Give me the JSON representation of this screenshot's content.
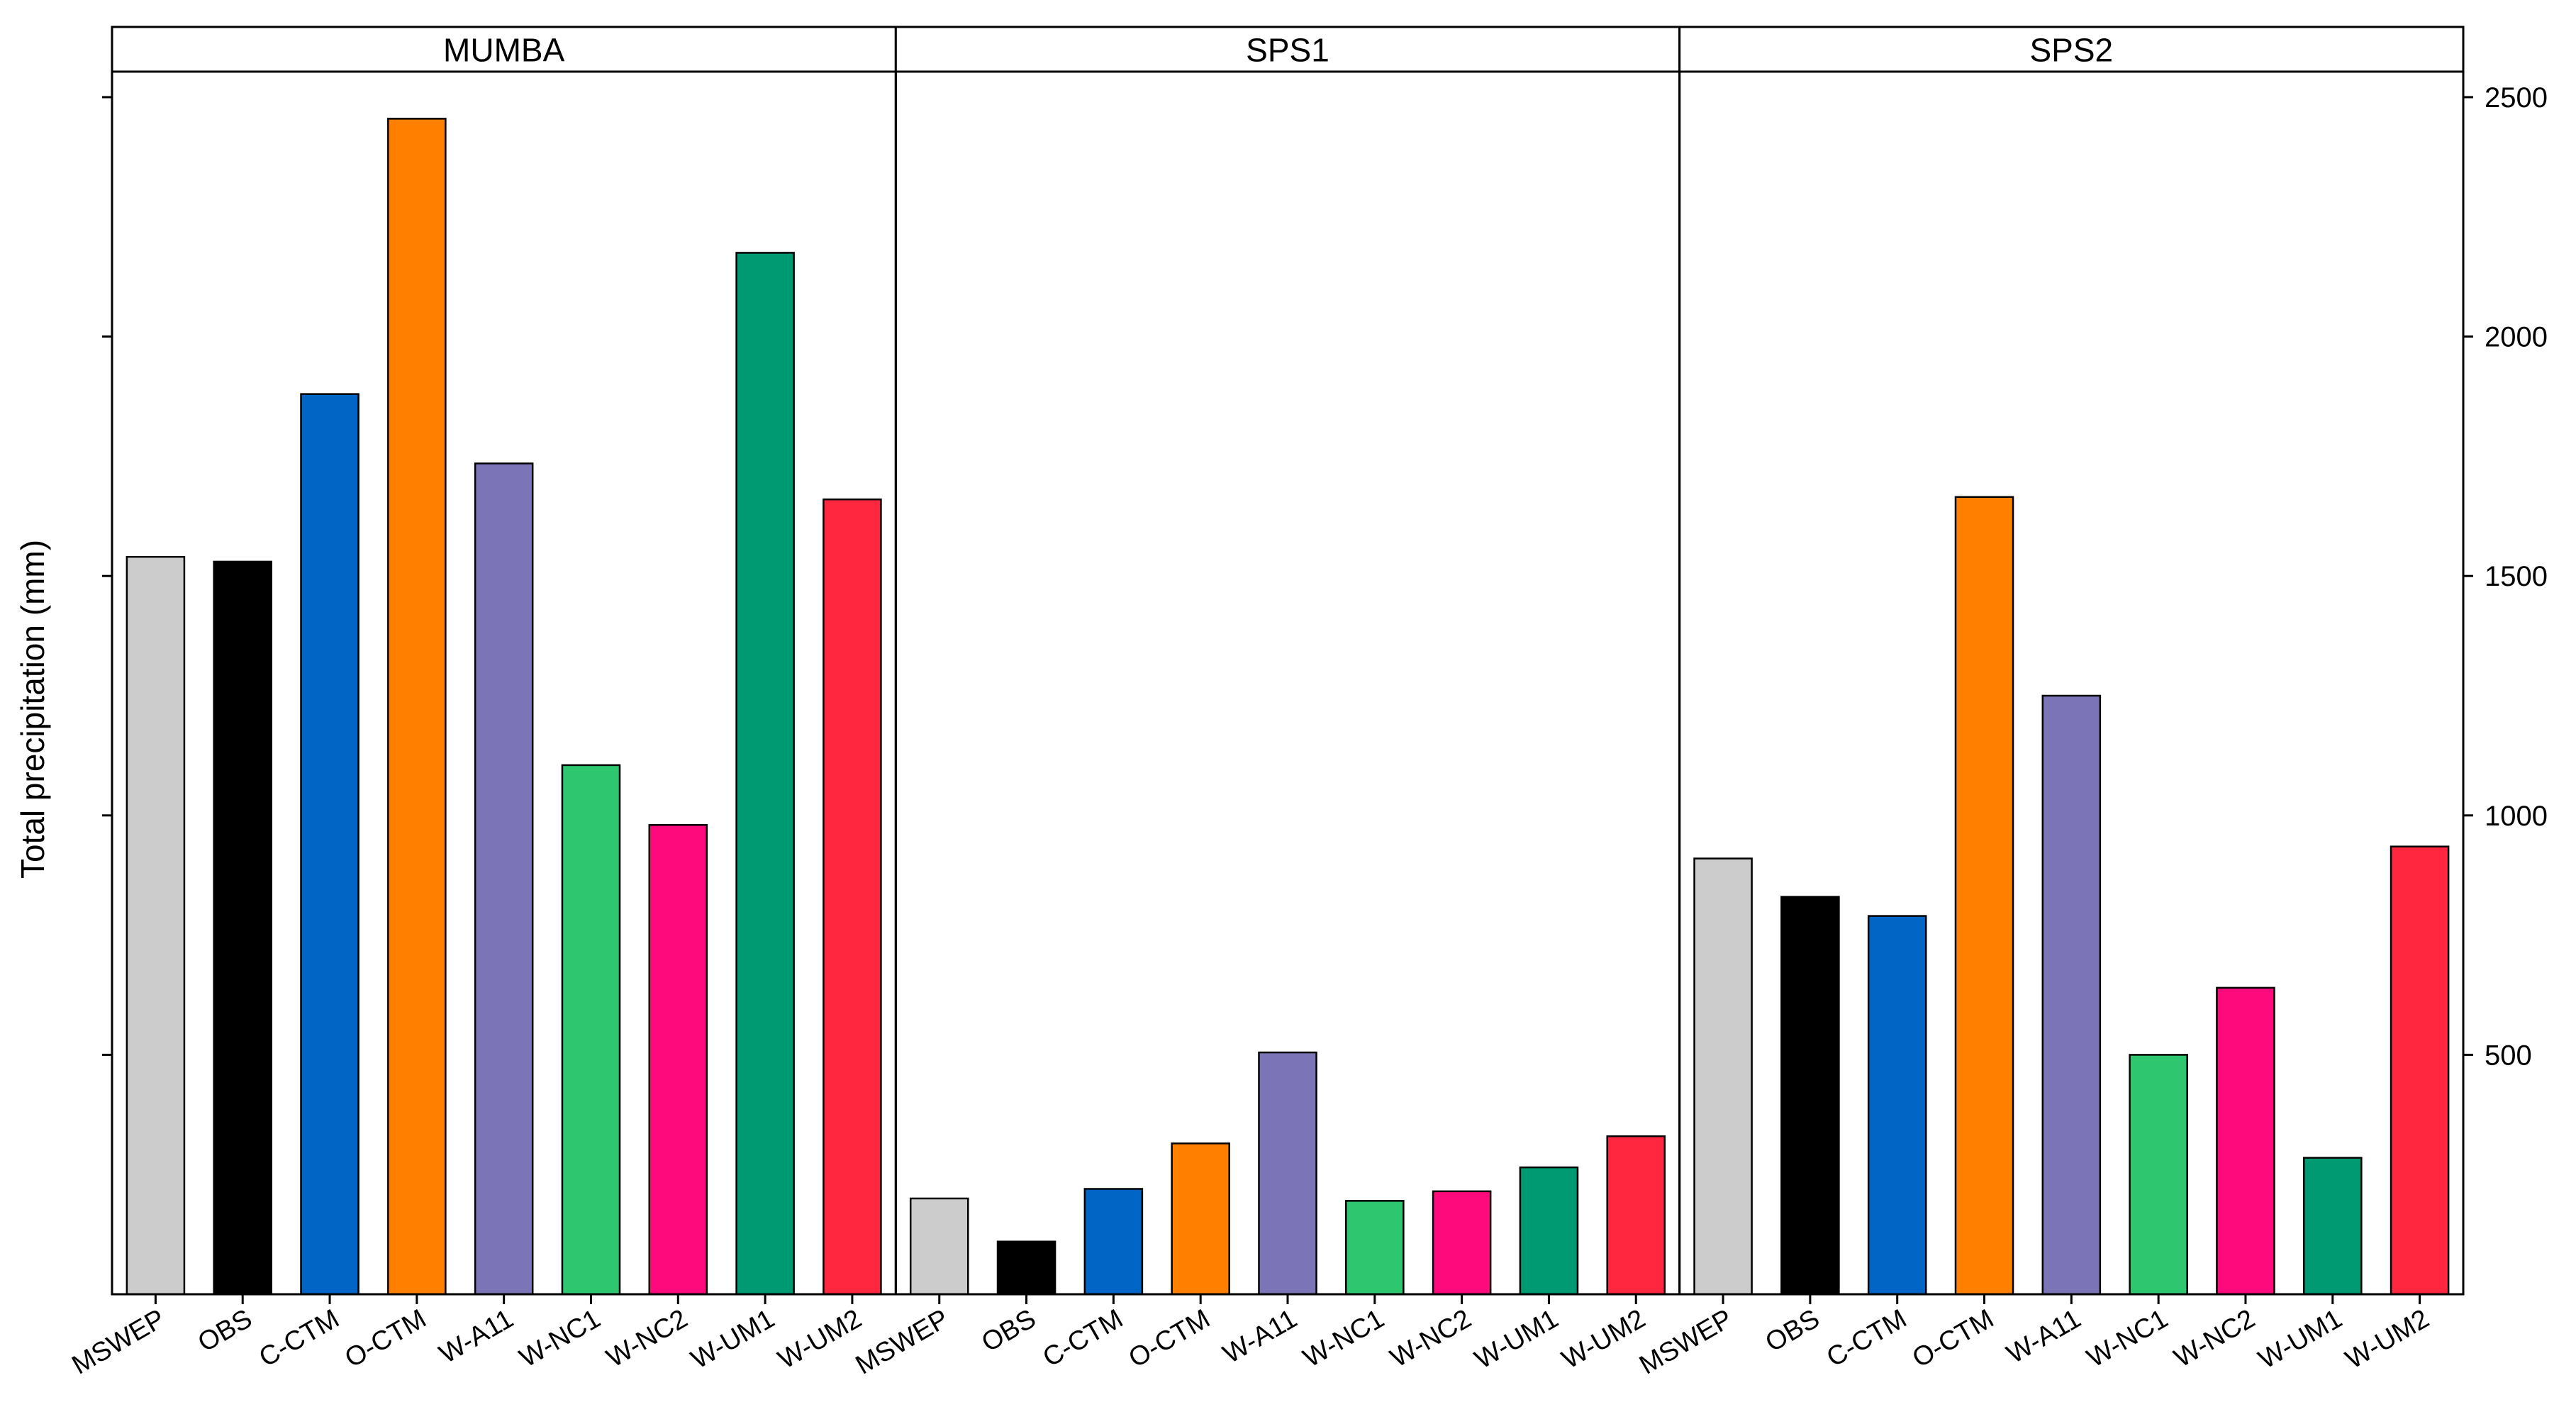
{
  "chart_data": {
    "type": "bar",
    "ylabel": "Total precipitation (mm)",
    "ylim": [
      0,
      2500
    ],
    "yticks": [
      500,
      1000,
      1500,
      2000,
      2500
    ],
    "ytick_side": "right",
    "grid": false,
    "legend": "none",
    "categories": [
      "MSWEP",
      "OBS",
      "C-CTM",
      "O-CTM",
      "W-A11",
      "W-NC1",
      "W-NC2",
      "W-UM1",
      "W-UM2"
    ],
    "colors": {
      "MSWEP": "#cccccc",
      "OBS": "#000000",
      "C-CTM": "#0065c4",
      "O-CTM": "#ff7f00",
      "W-A11": "#7b75b8",
      "W-NC1": "#2fc670",
      "W-NC2": "#ff0a7d",
      "W-UM1": "#009a72",
      "W-UM2": "#ff2640"
    },
    "panels": [
      {
        "name": "MUMBA",
        "values": [
          1540,
          1530,
          1880,
          2455,
          1735,
          1105,
          980,
          2175,
          1660
        ]
      },
      {
        "name": "SPS1",
        "values": [
          200,
          110,
          220,
          315,
          505,
          195,
          215,
          265,
          330
        ]
      },
      {
        "name": "SPS2",
        "values": [
          910,
          830,
          790,
          1665,
          1250,
          500,
          640,
          285,
          935
        ]
      }
    ]
  }
}
